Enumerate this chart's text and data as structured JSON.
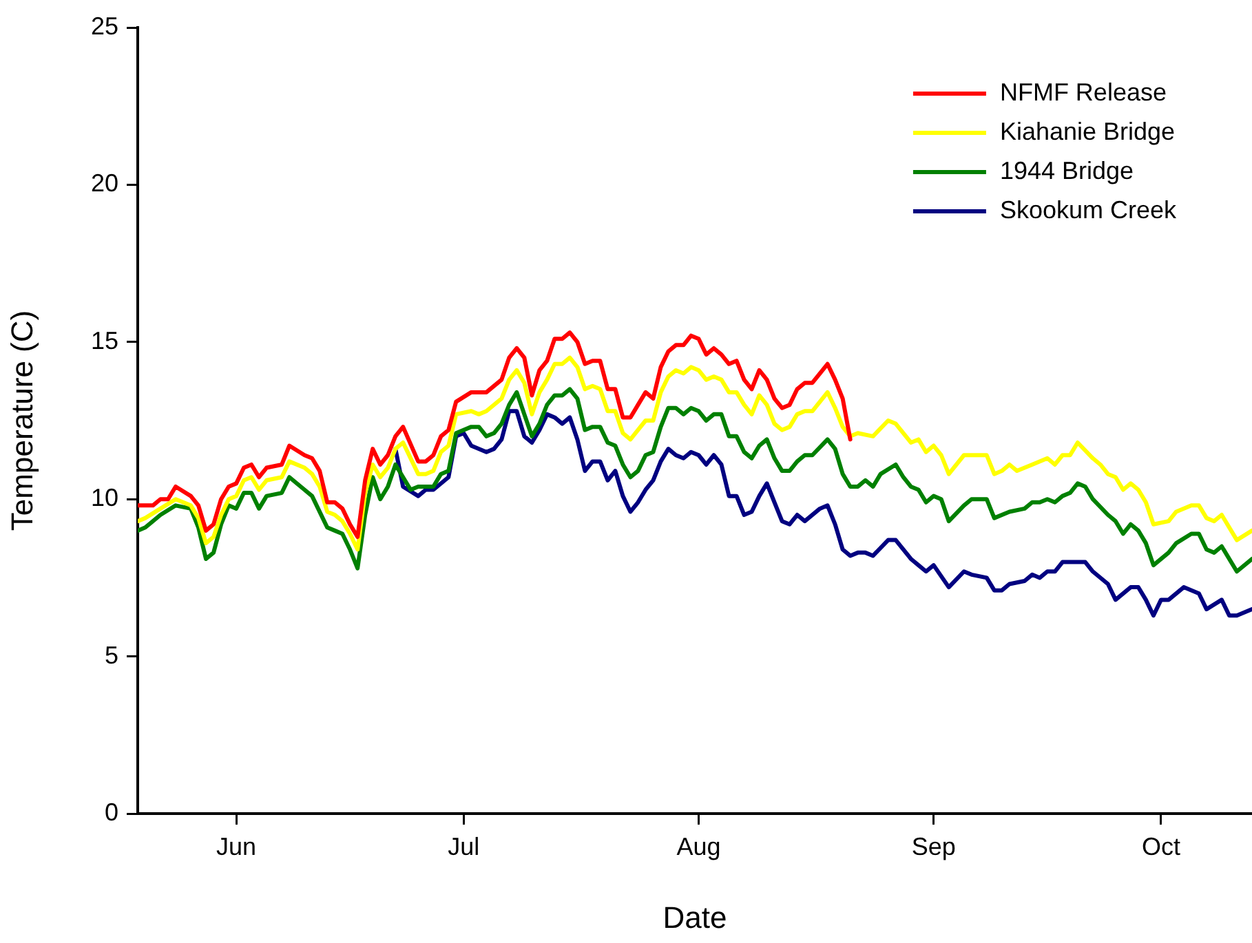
{
  "chart_data": {
    "type": "line",
    "xlabel": "Date",
    "ylabel": "Temperature (C)",
    "xlim": [
      "--05-19",
      "--10-13"
    ],
    "xticks": [
      {
        "value": "--06-01",
        "label": "Jun"
      },
      {
        "value": "--07-01",
        "label": "Jul"
      },
      {
        "value": "--08-01",
        "label": "Aug"
      },
      {
        "value": "--09-01",
        "label": "Sep"
      },
      {
        "value": "--10-01",
        "label": "Oct"
      }
    ],
    "ylim": [
      0,
      25
    ],
    "yticks": [
      0,
      5,
      10,
      15,
      20,
      25
    ],
    "legend": "top right",
    "marker": "none",
    "line_style": "solid",
    "series": [
      {
        "name": "NFMF Release",
        "color": "#ff0000",
        "x": [
          "--05-19",
          "--05-20",
          "--05-21",
          "--05-22",
          "--05-23",
          "--05-24",
          "--05-26",
          "--05-27",
          "--05-28",
          "--05-29",
          "--05-30",
          "--05-31",
          "--06-01",
          "--06-02",
          "--06-03",
          "--06-04",
          "--06-05",
          "--06-07",
          "--06-08",
          "--06-10",
          "--06-11",
          "--06-12",
          "--06-13",
          "--06-14",
          "--06-15",
          "--06-16",
          "--06-17",
          "--06-18",
          "--06-19",
          "--06-20",
          "--06-21",
          "--06-22",
          "--06-23",
          "--06-25",
          "--06-26",
          "--06-27",
          "--06-28",
          "--06-29",
          "--06-30",
          "--07-02",
          "--07-03",
          "--07-04",
          "--07-06",
          "--07-07",
          "--07-08",
          "--07-09",
          "--07-10",
          "--07-11",
          "--07-12",
          "--07-13",
          "--07-14",
          "--07-15",
          "--07-16",
          "--07-17",
          "--07-18",
          "--07-19",
          "--07-20",
          "--07-21",
          "--07-22",
          "--07-23",
          "--07-24",
          "--07-25",
          "--07-26",
          "--07-27",
          "--07-28",
          "--07-29",
          "--07-30",
          "--07-31",
          "--08-01",
          "--08-02",
          "--08-03",
          "--08-04",
          "--08-05",
          "--08-06",
          "--08-07",
          "--08-08",
          "--08-09",
          "--08-10",
          "--08-11",
          "--08-12",
          "--08-13",
          "--08-14",
          "--08-15",
          "--08-16",
          "--08-18",
          "--08-19",
          "--08-20",
          "--08-21"
        ],
        "values": [
          9.8,
          9.8,
          9.8,
          10.0,
          10.0,
          10.4,
          10.1,
          9.8,
          9.0,
          9.2,
          10.0,
          10.4,
          10.5,
          11.0,
          11.1,
          10.7,
          11.0,
          11.1,
          11.7,
          11.4,
          11.3,
          10.9,
          9.9,
          9.9,
          9.7,
          9.2,
          8.8,
          10.6,
          11.6,
          11.1,
          11.4,
          12.0,
          12.3,
          11.2,
          11.2,
          11.4,
          12.0,
          12.2,
          13.1,
          13.4,
          13.4,
          13.4,
          13.8,
          14.5,
          14.8,
          14.5,
          13.3,
          14.1,
          14.4,
          15.1,
          15.1,
          15.3,
          15.0,
          14.3,
          14.4,
          14.4,
          13.5,
          13.5,
          12.6,
          12.6,
          13.0,
          13.4,
          13.2,
          14.2,
          14.7,
          14.9,
          14.9,
          15.2,
          15.1,
          14.6,
          14.8,
          14.6,
          14.3,
          14.4,
          13.8,
          13.5,
          14.1,
          13.8,
          13.2,
          12.9,
          13.0,
          13.5,
          13.7,
          13.7,
          14.3,
          13.8,
          13.2,
          11.9
        ]
      },
      {
        "name": "Kiahanie Bridge",
        "color": "#ffff00",
        "x": [
          "--05-19",
          "--05-20",
          "--05-22",
          "--05-24",
          "--05-26",
          "--05-27",
          "--05-28",
          "--05-29",
          "--05-30",
          "--05-31",
          "--06-01",
          "--06-02",
          "--06-03",
          "--06-04",
          "--06-05",
          "--06-07",
          "--06-08",
          "--06-10",
          "--06-11",
          "--06-12",
          "--06-13",
          "--06-14",
          "--06-15",
          "--06-16",
          "--06-17",
          "--06-18",
          "--06-19",
          "--06-20",
          "--06-21",
          "--06-22",
          "--06-23",
          "--06-25",
          "--06-26",
          "--06-27",
          "--06-28",
          "--06-29",
          "--06-30",
          "--07-02",
          "--07-03",
          "--07-04",
          "--07-06",
          "--07-07",
          "--07-08",
          "--07-09",
          "--07-10",
          "--07-11",
          "--07-12",
          "--07-13",
          "--07-14",
          "--07-15",
          "--07-16",
          "--07-17",
          "--07-18",
          "--07-19",
          "--07-20",
          "--07-21",
          "--07-22",
          "--07-23",
          "--07-24",
          "--07-25",
          "--07-26",
          "--07-27",
          "--07-28",
          "--07-29",
          "--07-30",
          "--07-31",
          "--08-01",
          "--08-02",
          "--08-03",
          "--08-04",
          "--08-05",
          "--08-06",
          "--08-07",
          "--08-08",
          "--08-09",
          "--08-10",
          "--08-11",
          "--08-12",
          "--08-13",
          "--08-14",
          "--08-15",
          "--08-16",
          "--08-18",
          "--08-19",
          "--08-20",
          "--08-21",
          "--08-22",
          "--08-24",
          "--08-26",
          "--08-27",
          "--08-29",
          "--08-30",
          "--08-31",
          "--09-01",
          "--09-02",
          "--09-03",
          "--09-05",
          "--09-06",
          "--09-08",
          "--09-09",
          "--09-10",
          "--09-11",
          "--09-12",
          "--09-13",
          "--09-14",
          "--09-16",
          "--09-17",
          "--09-18",
          "--09-19",
          "--09-20",
          "--09-22",
          "--09-23",
          "--09-24",
          "--09-25",
          "--09-26",
          "--09-27",
          "--09-28",
          "--09-29",
          "--09-30",
          "--10-02",
          "--10-03",
          "--10-05",
          "--10-06",
          "--10-07",
          "--10-08",
          "--10-09",
          "--10-11",
          "--10-13"
        ],
        "values": [
          9.3,
          9.4,
          9.7,
          10.0,
          9.8,
          9.4,
          8.6,
          8.8,
          9.5,
          10.0,
          10.1,
          10.6,
          10.7,
          10.3,
          10.6,
          10.7,
          11.2,
          11.0,
          10.8,
          10.4,
          9.6,
          9.5,
          9.3,
          8.9,
          8.4,
          10.2,
          11.1,
          10.7,
          11.0,
          11.6,
          11.8,
          10.8,
          10.8,
          10.9,
          11.5,
          11.7,
          12.7,
          12.8,
          12.7,
          12.8,
          13.2,
          13.8,
          14.1,
          13.7,
          12.7,
          13.4,
          13.8,
          14.3,
          14.3,
          14.5,
          14.2,
          13.5,
          13.6,
          13.5,
          12.8,
          12.8,
          12.1,
          11.9,
          12.2,
          12.5,
          12.5,
          13.4,
          13.9,
          14.1,
          14.0,
          14.2,
          14.1,
          13.8,
          13.9,
          13.8,
          13.4,
          13.4,
          13.0,
          12.7,
          13.3,
          13.0,
          12.4,
          12.2,
          12.3,
          12.7,
          12.8,
          12.8,
          13.4,
          12.9,
          12.3,
          12.0,
          12.1,
          12.0,
          12.5,
          12.4,
          11.8,
          11.9,
          11.5,
          11.7,
          11.4,
          10.8,
          11.4,
          11.4,
          11.4,
          10.8,
          10.9,
          11.1,
          10.9,
          11.0,
          11.1,
          11.3,
          11.1,
          11.4,
          11.4,
          11.8,
          11.3,
          11.1,
          10.8,
          10.7,
          10.3,
          10.5,
          10.3,
          9.9,
          9.2,
          9.3,
          9.6,
          9.8,
          9.8,
          9.4,
          9.3,
          9.5,
          8.7,
          9.0
        ]
      },
      {
        "name": "1944 Bridge",
        "color": "#008000",
        "x": [
          "--05-19",
          "--05-20",
          "--05-22",
          "--05-24",
          "--05-26",
          "--05-27",
          "--05-28",
          "--05-29",
          "--05-30",
          "--05-31",
          "--06-01",
          "--06-02",
          "--06-03",
          "--06-04",
          "--06-05",
          "--06-07",
          "--06-08",
          "--06-10",
          "--06-11",
          "--06-13",
          "--06-14",
          "--06-15",
          "--06-16",
          "--06-17",
          "--06-18",
          "--06-19",
          "--06-20",
          "--06-21",
          "--06-22",
          "--06-24",
          "--06-25",
          "--06-27",
          "--06-28",
          "--06-29",
          "--06-30",
          "--07-02",
          "--07-03",
          "--07-04",
          "--07-05",
          "--07-06",
          "--07-07",
          "--07-08",
          "--07-09",
          "--07-10",
          "--07-11",
          "--07-12",
          "--07-13",
          "--07-14",
          "--07-15",
          "--07-16",
          "--07-17",
          "--07-18",
          "--07-19",
          "--07-20",
          "--07-21",
          "--07-22",
          "--07-23",
          "--07-24",
          "--07-25",
          "--07-26",
          "--07-27",
          "--07-28",
          "--07-29",
          "--07-30",
          "--07-31",
          "--08-01",
          "--08-02",
          "--08-03",
          "--08-04",
          "--08-05",
          "--08-06",
          "--08-07",
          "--08-08",
          "--08-09",
          "--08-10",
          "--08-11",
          "--08-12",
          "--08-13",
          "--08-14",
          "--08-15",
          "--08-16",
          "--08-18",
          "--08-19",
          "--08-20",
          "--08-21",
          "--08-22",
          "--08-23",
          "--08-24",
          "--08-25",
          "--08-27",
          "--08-28",
          "--08-29",
          "--08-30",
          "--08-31",
          "--09-01",
          "--09-02",
          "--09-03",
          "--09-05",
          "--09-06",
          "--09-08",
          "--09-09",
          "--09-11",
          "--09-13",
          "--09-14",
          "--09-15",
          "--09-16",
          "--09-17",
          "--09-18",
          "--09-19",
          "--09-20",
          "--09-21",
          "--09-22",
          "--09-24",
          "--09-25",
          "--09-26",
          "--09-27",
          "--09-28",
          "--09-29",
          "--09-30",
          "--10-02",
          "--10-03",
          "--10-05",
          "--10-06",
          "--10-07",
          "--10-08",
          "--10-09",
          "--10-11",
          "--10-13"
        ],
        "values": [
          9.0,
          9.1,
          9.5,
          9.8,
          9.7,
          9.1,
          8.1,
          8.3,
          9.2,
          9.8,
          9.7,
          10.2,
          10.2,
          9.7,
          10.1,
          10.2,
          10.7,
          10.3,
          10.1,
          9.1,
          9.0,
          8.9,
          8.4,
          7.8,
          9.5,
          10.7,
          10.0,
          10.4,
          11.1,
          10.3,
          10.4,
          10.4,
          10.8,
          10.9,
          12.1,
          12.3,
          12.3,
          12.0,
          12.1,
          12.4,
          13.0,
          13.4,
          12.7,
          12.0,
          12.4,
          13.0,
          13.3,
          13.3,
          13.5,
          13.2,
          12.2,
          12.3,
          12.3,
          11.8,
          11.7,
          11.1,
          10.7,
          10.9,
          11.4,
          11.5,
          12.3,
          12.9,
          12.9,
          12.7,
          12.9,
          12.8,
          12.5,
          12.7,
          12.7,
          12.0,
          12.0,
          11.5,
          11.3,
          11.7,
          11.9,
          11.3,
          10.9,
          10.9,
          11.2,
          11.4,
          11.4,
          11.9,
          11.6,
          10.8,
          10.4,
          10.4,
          10.6,
          10.4,
          10.8,
          11.1,
          10.7,
          10.4,
          10.3,
          9.9,
          10.1,
          10.0,
          9.3,
          9.8,
          10.0,
          10.0,
          9.4,
          9.6,
          9.7,
          9.9,
          9.9,
          10.0,
          9.9,
          10.1,
          10.2,
          10.5,
          10.4,
          10.0,
          9.5,
          9.3,
          8.9,
          9.2,
          9.0,
          8.6,
          7.9,
          8.3,
          8.6,
          8.9,
          8.9,
          8.4,
          8.3,
          8.5,
          7.7,
          8.1
        ]
      },
      {
        "name": "Skookum Creek",
        "color": "#000080",
        "x": [
          "--06-22",
          "--06-23",
          "--06-25",
          "--06-26",
          "--06-27",
          "--06-29",
          "--06-30",
          "--07-01",
          "--07-02",
          "--07-04",
          "--07-05",
          "--07-06",
          "--07-07",
          "--07-08",
          "--07-09",
          "--07-10",
          "--07-11",
          "--07-12",
          "--07-13",
          "--07-14",
          "--07-15",
          "--07-16",
          "--07-17",
          "--07-18",
          "--07-19",
          "--07-20",
          "--07-21",
          "--07-22",
          "--07-23",
          "--07-24",
          "--07-25",
          "--07-26",
          "--07-27",
          "--07-28",
          "--07-29",
          "--07-30",
          "--07-31",
          "--08-01",
          "--08-02",
          "--08-03",
          "--08-04",
          "--08-05",
          "--08-06",
          "--08-07",
          "--08-08",
          "--08-09",
          "--08-10",
          "--08-11",
          "--08-12",
          "--08-13",
          "--08-14",
          "--08-15",
          "--08-17",
          "--08-18",
          "--08-19",
          "--08-20",
          "--08-21",
          "--08-22",
          "--08-23",
          "--08-24",
          "--08-26",
          "--08-27",
          "--08-29",
          "--08-30",
          "--08-31",
          "--09-01",
          "--09-03",
          "--09-05",
          "--09-06",
          "--09-08",
          "--09-09",
          "--09-10",
          "--09-11",
          "--09-13",
          "--09-14",
          "--09-15",
          "--09-16",
          "--09-17",
          "--09-18",
          "--09-20",
          "--09-21",
          "--09-22",
          "--09-24",
          "--09-25",
          "--09-27",
          "--09-28",
          "--09-29",
          "--09-30",
          "--10-01",
          "--10-02",
          "--10-04",
          "--10-06",
          "--10-07",
          "--10-09",
          "--10-10",
          "--10-11",
          "--10-13"
        ],
        "values": [
          11.6,
          10.4,
          10.1,
          10.3,
          10.3,
          10.7,
          12.0,
          12.1,
          11.7,
          11.5,
          11.6,
          11.9,
          12.8,
          12.8,
          12.0,
          11.8,
          12.2,
          12.7,
          12.6,
          12.4,
          12.6,
          11.9,
          10.9,
          11.2,
          11.2,
          10.6,
          10.9,
          10.1,
          9.6,
          9.9,
          10.3,
          10.6,
          11.2,
          11.6,
          11.4,
          11.3,
          11.5,
          11.4,
          11.1,
          11.4,
          11.1,
          10.1,
          10.1,
          9.5,
          9.6,
          10.1,
          10.5,
          9.9,
          9.3,
          9.2,
          9.5,
          9.3,
          9.7,
          9.8,
          9.2,
          8.4,
          8.2,
          8.3,
          8.3,
          8.2,
          8.7,
          8.7,
          8.1,
          7.9,
          7.7,
          7.9,
          7.2,
          7.7,
          7.6,
          7.5,
          7.1,
          7.1,
          7.3,
          7.4,
          7.6,
          7.5,
          7.7,
          7.7,
          8.0,
          8.0,
          8.0,
          7.7,
          7.3,
          6.8,
          7.2,
          7.2,
          6.8,
          6.3,
          6.8,
          6.8,
          7.2,
          7.0,
          6.5,
          6.8,
          6.3,
          6.3,
          6.5
        ]
      }
    ]
  }
}
